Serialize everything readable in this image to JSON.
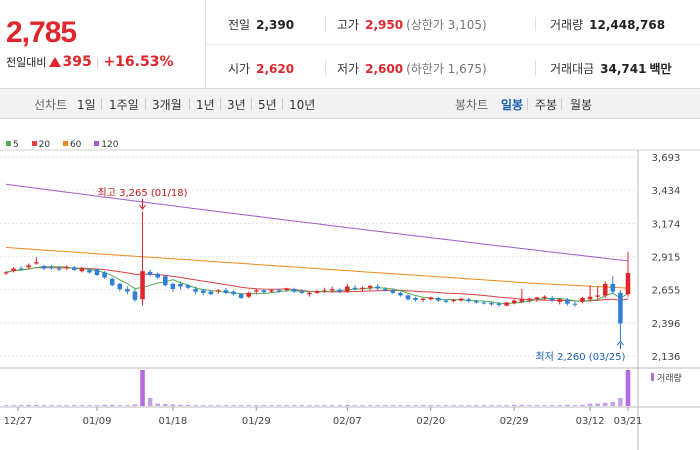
{
  "summary": {
    "price": "2,785",
    "change_label": "전일대비",
    "change_amount": "395",
    "change_percent": "+16.53%",
    "prev_close_label": "전일",
    "prev_close": "2,390",
    "open_label": "시가",
    "open": "2,620",
    "high_label": "고가",
    "high": "2,950",
    "upper_limit": "(상한가 3,105)",
    "low_label": "저가",
    "low": "2,600",
    "lower_limit": "(하한가 1,675)",
    "volume_label": "거래량",
    "volume": "12,448,768",
    "amount_label": "거래대금",
    "amount": "34,741",
    "amount_unit": "백만"
  },
  "toolbar": {
    "line_chart_label": "선차트",
    "periods": [
      "1일",
      "1주일",
      "3개월",
      "1년",
      "3년",
      "5년",
      "10년"
    ],
    "candle_chart_label": "봉차트",
    "candle_periods": [
      "일봉",
      "주봉",
      "월봉"
    ],
    "active_candle": "일봉"
  },
  "colors": {
    "up": "#e0262d",
    "down": "#2f7fd6",
    "ma5": "#4caf50",
    "ma20": "#e04040",
    "ma60": "#f08a1c",
    "ma120": "#a25ad0"
  },
  "chart_data": {
    "type": "candlestick",
    "moving_averages": [
      {
        "name": "5",
        "color": "#4caf50"
      },
      {
        "name": "20",
        "color": "#e04040"
      },
      {
        "name": "60",
        "color": "#f08a1c"
      },
      {
        "name": "120",
        "color": "#a25ad0"
      }
    ],
    "y_ticks": [
      "3,693",
      "3,434",
      "3,174",
      "2,915",
      "2,655",
      "2,396",
      "2,136"
    ],
    "ylim": [
      2136,
      3693
    ],
    "x_ticks": [
      "12/27",
      "01/09",
      "01/18",
      "01/29",
      "02/07",
      "02/20",
      "02/29",
      "03/12",
      "03/21"
    ],
    "annotations": [
      {
        "label": "최고 3,265 (01/18)",
        "value": 3265
      },
      {
        "label": "최저 2,260 (03/25)",
        "value": 2260
      }
    ],
    "volume_label": "거래량",
    "candles": [
      [
        2785,
        2800,
        2770,
        2790
      ],
      [
        2800,
        2830,
        2790,
        2820
      ],
      [
        2820,
        2840,
        2810,
        2815
      ],
      [
        2830,
        2860,
        2815,
        2845
      ],
      [
        2860,
        2910,
        2850,
        2870
      ],
      [
        2840,
        2850,
        2810,
        2820
      ],
      [
        2830,
        2850,
        2810,
        2825
      ],
      [
        2820,
        2840,
        2800,
        2815
      ],
      [
        2825,
        2845,
        2810,
        2830
      ],
      [
        2830,
        2840,
        2800,
        2810
      ],
      [
        2800,
        2830,
        2790,
        2820
      ],
      [
        2810,
        2820,
        2780,
        2790
      ],
      [
        2815,
        2820,
        2760,
        2770
      ],
      [
        2790,
        2800,
        2740,
        2750
      ],
      [
        2740,
        2750,
        2680,
        2690
      ],
      [
        2700,
        2710,
        2640,
        2660
      ],
      [
        2660,
        2680,
        2620,
        2640
      ],
      [
        2640,
        2660,
        2560,
        2575
      ],
      [
        2580,
        3265,
        2530,
        2800
      ],
      [
        2795,
        2810,
        2760,
        2770
      ],
      [
        2780,
        2790,
        2740,
        2750
      ],
      [
        2760,
        2770,
        2680,
        2690
      ],
      [
        2700,
        2710,
        2640,
        2660
      ],
      [
        2700,
        2720,
        2660,
        2680
      ],
      [
        2690,
        2700,
        2660,
        2670
      ],
      [
        2660,
        2680,
        2620,
        2640
      ],
      [
        2650,
        2660,
        2610,
        2630
      ],
      [
        2640,
        2650,
        2610,
        2620
      ],
      [
        2645,
        2660,
        2625,
        2650
      ],
      [
        2650,
        2670,
        2620,
        2630
      ],
      [
        2640,
        2650,
        2610,
        2620
      ],
      [
        2620,
        2630,
        2580,
        2590
      ],
      [
        2600,
        2640,
        2590,
        2630
      ],
      [
        2640,
        2660,
        2620,
        2650
      ],
      [
        2650,
        2660,
        2625,
        2635
      ],
      [
        2640,
        2660,
        2630,
        2650
      ],
      [
        2650,
        2665,
        2630,
        2640
      ],
      [
        2655,
        2670,
        2640,
        2660
      ],
      [
        2660,
        2670,
        2630,
        2640
      ],
      [
        2640,
        2660,
        2620,
        2630
      ],
      [
        2620,
        2640,
        2600,
        2630
      ],
      [
        2630,
        2650,
        2620,
        2645
      ],
      [
        2645,
        2670,
        2630,
        2650
      ],
      [
        2650,
        2680,
        2630,
        2660
      ],
      [
        2655,
        2665,
        2630,
        2640
      ],
      [
        2640,
        2700,
        2630,
        2680
      ],
      [
        2670,
        2690,
        2650,
        2660
      ],
      [
        2660,
        2680,
        2640,
        2670
      ],
      [
        2670,
        2690,
        2650,
        2685
      ],
      [
        2680,
        2700,
        2650,
        2665
      ],
      [
        2660,
        2675,
        2640,
        2650
      ],
      [
        2650,
        2660,
        2620,
        2630
      ],
      [
        2630,
        2640,
        2600,
        2610
      ],
      [
        2610,
        2620,
        2570,
        2580
      ],
      [
        2590,
        2600,
        2560,
        2575
      ],
      [
        2575,
        2590,
        2560,
        2585
      ],
      [
        2580,
        2600,
        2570,
        2595
      ],
      [
        2590,
        2600,
        2560,
        2570
      ],
      [
        2570,
        2580,
        2550,
        2560
      ],
      [
        2565,
        2580,
        2555,
        2575
      ],
      [
        2570,
        2590,
        2560,
        2585
      ],
      [
        2580,
        2590,
        2555,
        2565
      ],
      [
        2565,
        2575,
        2545,
        2555
      ],
      [
        2555,
        2565,
        2540,
        2550
      ],
      [
        2550,
        2565,
        2530,
        2540
      ],
      [
        2545,
        2560,
        2520,
        2535
      ],
      [
        2530,
        2560,
        2525,
        2555
      ],
      [
        2550,
        2580,
        2540,
        2570
      ],
      [
        2560,
        2660,
        2550,
        2580
      ],
      [
        2570,
        2590,
        2555,
        2585
      ],
      [
        2580,
        2600,
        2560,
        2595
      ],
      [
        2590,
        2610,
        2570,
        2600
      ],
      [
        2590,
        2605,
        2560,
        2570
      ],
      [
        2560,
        2590,
        2540,
        2580
      ],
      [
        2575,
        2590,
        2530,
        2545
      ],
      [
        2545,
        2560,
        2520,
        2540
      ],
      [
        2560,
        2600,
        2550,
        2590
      ],
      [
        2580,
        2690,
        2560,
        2600
      ],
      [
        2600,
        2680,
        2580,
        2610
      ],
      [
        2610,
        2720,
        2590,
        2700
      ],
      [
        2700,
        2760,
        2620,
        2640
      ],
      [
        2630,
        2650,
        2260,
        2390
      ],
      [
        2620,
        2950,
        2600,
        2785
      ]
    ],
    "volumes": [
      2,
      2,
      2,
      3,
      3,
      2,
      2,
      2,
      2,
      2,
      2,
      2,
      2,
      3,
      3,
      2,
      2,
      4,
      90,
      20,
      6,
      5,
      4,
      3,
      3,
      2,
      2,
      2,
      2,
      2,
      2,
      2,
      2,
      2,
      2,
      2,
      2,
      2,
      2,
      2,
      2,
      2,
      2,
      2,
      2,
      3,
      2,
      2,
      2,
      2,
      2,
      2,
      2,
      2,
      2,
      2,
      2,
      2,
      2,
      2,
      2,
      2,
      2,
      2,
      2,
      2,
      2,
      3,
      3,
      2,
      2,
      2,
      2,
      2,
      3,
      2,
      3,
      6,
      6,
      8,
      10,
      20,
      90
    ]
  }
}
